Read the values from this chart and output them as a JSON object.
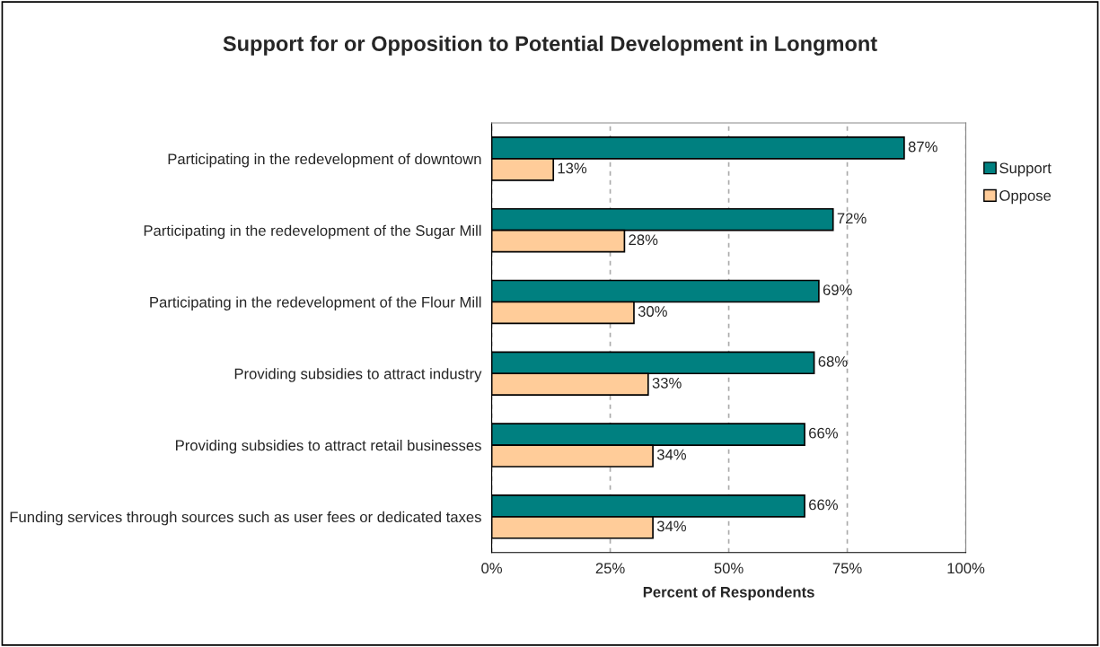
{
  "chart_data": {
    "type": "bar",
    "orientation": "horizontal",
    "title": "Support for or Opposition to Potential Development in Longmont",
    "xlabel": "Percent of Respondents",
    "categories": [
      "Participating in the redevelopment of downtown",
      "Participating in the redevelopment of the Sugar Mill",
      "Participating in the redevelopment of the Flour Mill",
      "Providing subsidies to attract industry",
      "Providing subsidies to attract retail businesses",
      "Funding services through sources such as user fees or dedicated taxes"
    ],
    "series": [
      {
        "name": "Support",
        "color": "#008080",
        "values": [
          87,
          72,
          69,
          68,
          66,
          66
        ],
        "value_labels": [
          "87%",
          "72%",
          "69%",
          "68%",
          "66%",
          "66%"
        ]
      },
      {
        "name": "Oppose",
        "color": "#ffcc99",
        "values": [
          13,
          28,
          30,
          33,
          34,
          34
        ],
        "value_labels": [
          "13%",
          "28%",
          "30%",
          "33%",
          "34%",
          "34%"
        ]
      }
    ],
    "xlim": [
      0,
      100
    ],
    "xticks": [
      {
        "value": 0,
        "label": "0%"
      },
      {
        "value": 25,
        "label": "25%"
      },
      {
        "value": 50,
        "label": "50%"
      },
      {
        "value": 75,
        "label": "75%"
      },
      {
        "value": 100,
        "label": "100%"
      }
    ],
    "grid": "x",
    "legend": "right"
  }
}
